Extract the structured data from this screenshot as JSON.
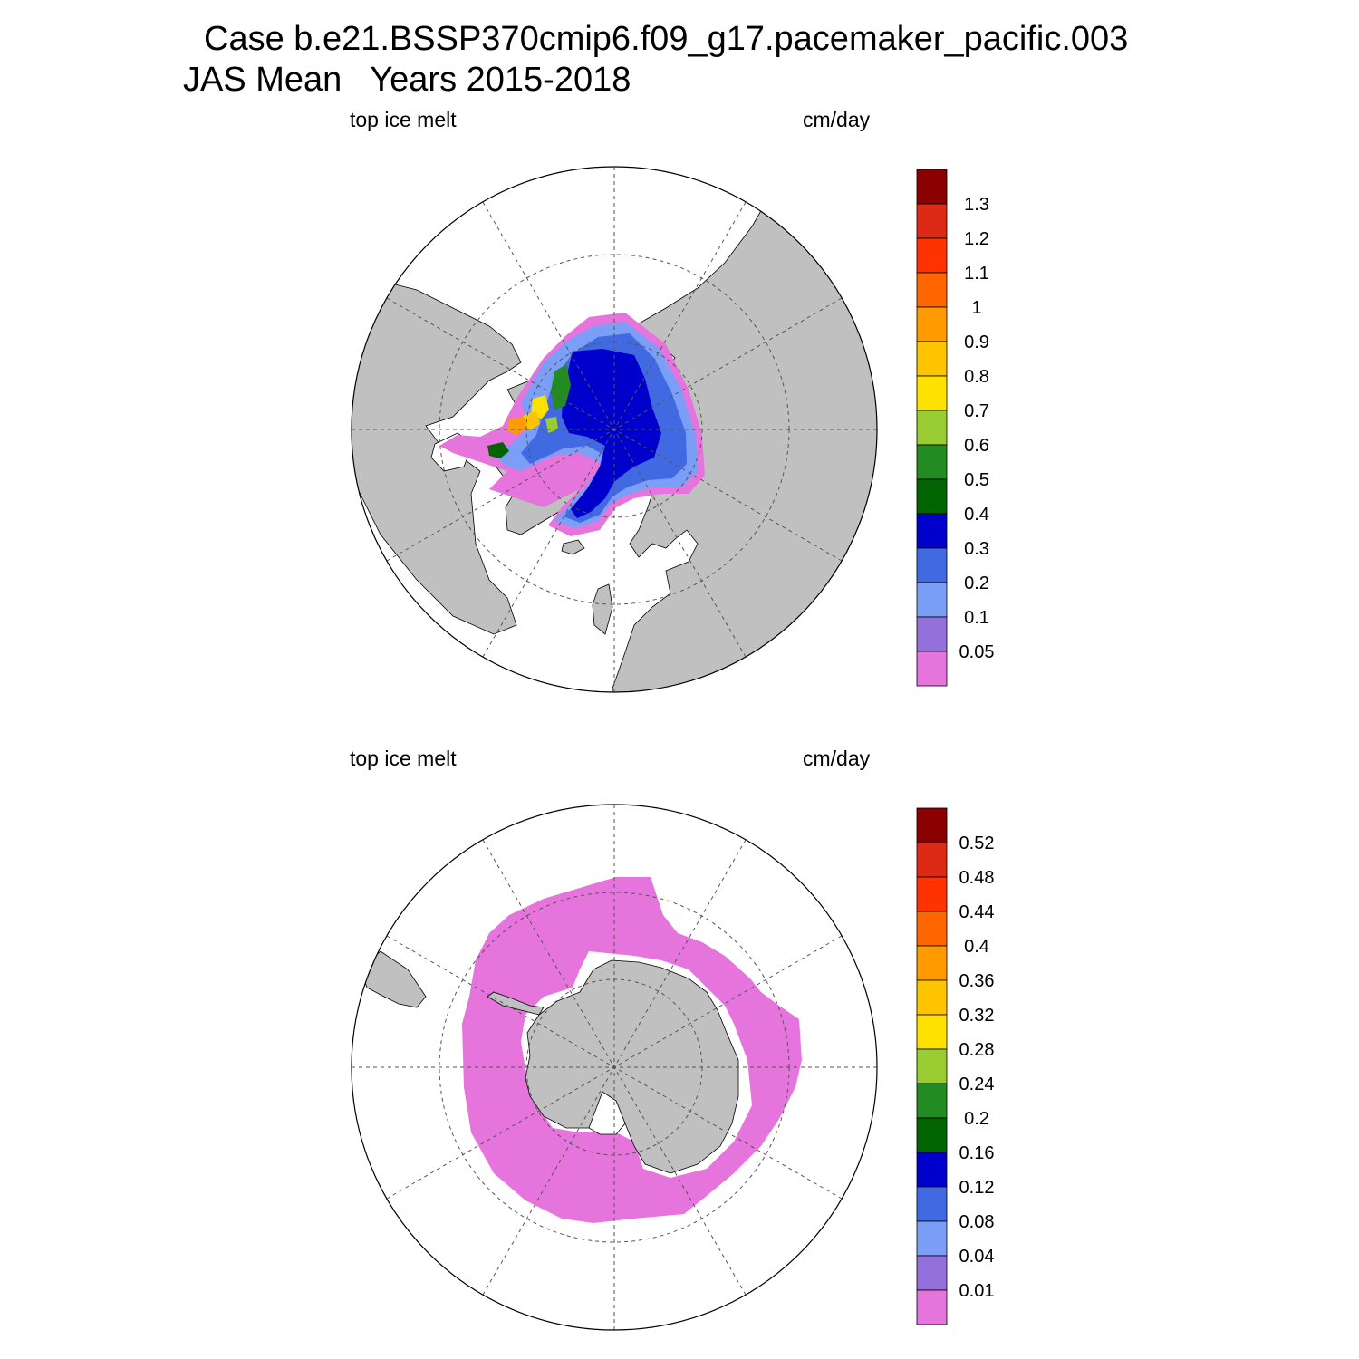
{
  "title": {
    "line1": "Case b.e21.BSSP370cmip6.f09_g17.pacemaker_pacific.003",
    "line2": "JAS Mean   Years 2015-2018"
  },
  "colors": {
    "land": "#c0c0c0",
    "ocean": "#ffffff",
    "outline": "#000000",
    "scale": [
      "#e574dc",
      "#9370db",
      "#7b9ef7",
      "#4169e1",
      "#0000cd",
      "#006400",
      "#228b22",
      "#9acd32",
      "#ffe100",
      "#ffc400",
      "#ff9a00",
      "#ff6600",
      "#ff3300",
      "#dd2a14",
      "#8b0000"
    ]
  },
  "panels": [
    {
      "name": "northern-hemisphere",
      "left_label": "top ice melt",
      "right_label": "cm/day",
      "colorbar_labels": [
        "1.3",
        "1.2",
        "1.1",
        "1",
        "0.9",
        "0.8",
        "0.7",
        "0.6",
        "0.5",
        "0.4",
        "0.3",
        "0.2",
        "0.1",
        "0.05"
      ]
    },
    {
      "name": "southern-hemisphere",
      "left_label": "top ice melt",
      "right_label": "cm/day",
      "colorbar_labels": [
        "0.52",
        "0.48",
        "0.44",
        "0.4",
        "0.36",
        "0.32",
        "0.28",
        "0.24",
        "0.2",
        "0.16",
        "0.12",
        "0.08",
        "0.04",
        "0.01"
      ]
    }
  ]
}
